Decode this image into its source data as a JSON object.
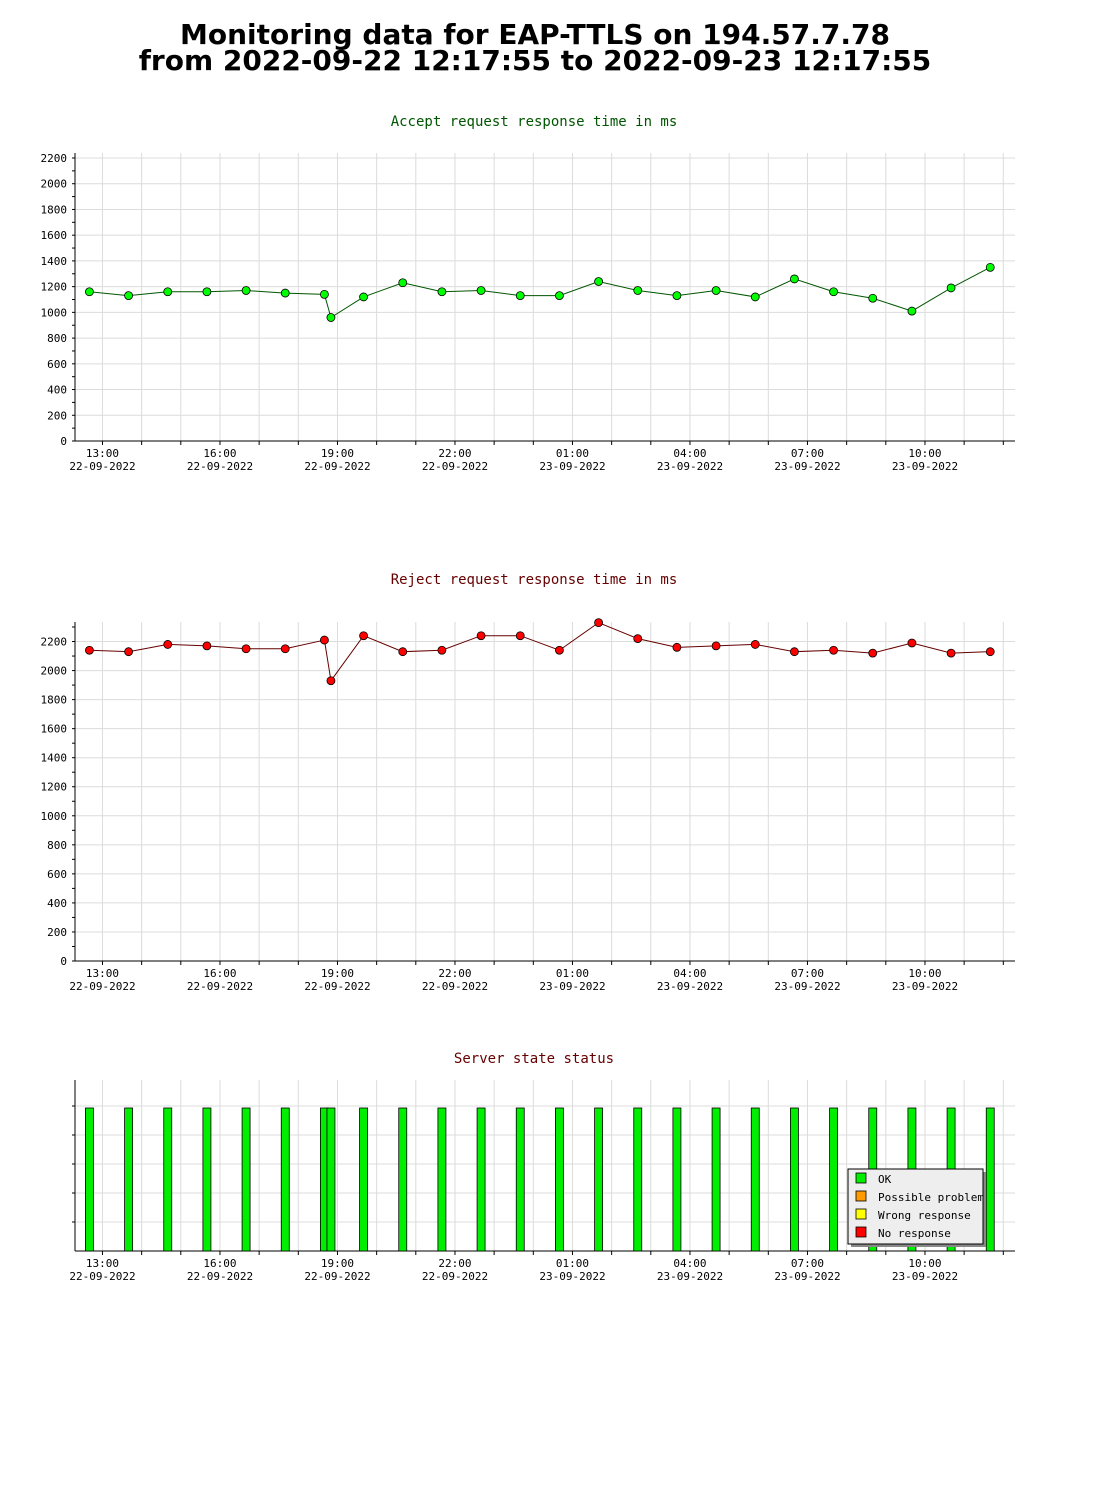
{
  "page": {
    "title_line1": "Monitoring data for EAP-TTLS on 194.57.7.78",
    "title_line2": "from 2022-09-22 12:17:55 to 2022-09-23 12:17:55"
  },
  "colors": {
    "accept_title": "#005500",
    "reject_title": "#660000",
    "status_title": "#660000",
    "accept_marker": "#00ff00",
    "accept_line": "#005500",
    "reject_marker": "#ff0000",
    "reject_line": "#660000",
    "ok": "#00ee00",
    "possible_problem": "#ff9900",
    "wrong_response": "#ffff00",
    "no_response": "#ff0000",
    "grid": "#dcdcdc"
  },
  "time_ticks": [
    {
      "time": "13:00",
      "date": "22-09-2022"
    },
    {
      "time": "16:00",
      "date": "22-09-2022"
    },
    {
      "time": "19:00",
      "date": "22-09-2022"
    },
    {
      "time": "22:00",
      "date": "22-09-2022"
    },
    {
      "time": "01:00",
      "date": "23-09-2022"
    },
    {
      "time": "04:00",
      "date": "23-09-2022"
    },
    {
      "time": "07:00",
      "date": "23-09-2022"
    },
    {
      "time": "10:00",
      "date": "23-09-2022"
    }
  ],
  "chart_data": [
    {
      "id": "accept",
      "type": "line",
      "title": "Accept request response time in ms",
      "ylim": [
        0,
        2200
      ],
      "yticks": [
        0,
        200,
        400,
        600,
        800,
        1000,
        1200,
        1400,
        1600,
        1800,
        2000,
        2200
      ],
      "grid": true,
      "x": [
        "2022-09-22 12:40",
        "2022-09-22 13:40",
        "2022-09-22 14:40",
        "2022-09-22 15:40",
        "2022-09-22 16:40",
        "2022-09-22 17:40",
        "2022-09-22 18:40",
        "2022-09-22 18:50",
        "2022-09-22 19:40",
        "2022-09-22 20:40",
        "2022-09-22 21:40",
        "2022-09-22 22:40",
        "2022-09-22 23:40",
        "2022-09-23 00:40",
        "2022-09-23 01:40",
        "2022-09-23 02:40",
        "2022-09-23 03:40",
        "2022-09-23 04:40",
        "2022-09-23 05:40",
        "2022-09-23 06:40",
        "2022-09-23 07:40",
        "2022-09-23 08:40",
        "2022-09-23 09:40",
        "2022-09-23 10:40",
        "2022-09-23 11:40"
      ],
      "values": [
        1160,
        1130,
        1160,
        1160,
        1170,
        1150,
        1140,
        960,
        1120,
        1230,
        1160,
        1170,
        1130,
        1130,
        1240,
        1170,
        1130,
        1170,
        1120,
        1260,
        1160,
        1110,
        1010,
        1190,
        1350
      ]
    },
    {
      "id": "reject",
      "type": "line",
      "title": "Reject request response time in ms",
      "ylim": [
        0,
        2300
      ],
      "yticks": [
        0,
        200,
        400,
        600,
        800,
        1000,
        1200,
        1400,
        1600,
        1800,
        2000,
        2200
      ],
      "grid": true,
      "x": [
        "2022-09-22 12:40",
        "2022-09-22 13:40",
        "2022-09-22 14:40",
        "2022-09-22 15:40",
        "2022-09-22 16:40",
        "2022-09-22 17:40",
        "2022-09-22 18:40",
        "2022-09-22 18:50",
        "2022-09-22 19:40",
        "2022-09-22 20:40",
        "2022-09-22 21:40",
        "2022-09-22 22:40",
        "2022-09-22 23:40",
        "2022-09-23 00:40",
        "2022-09-23 01:40",
        "2022-09-23 02:40",
        "2022-09-23 03:40",
        "2022-09-23 04:40",
        "2022-09-23 05:40",
        "2022-09-23 06:40",
        "2022-09-23 07:40",
        "2022-09-23 08:40",
        "2022-09-23 09:40",
        "2022-09-23 10:40",
        "2022-09-23 11:40"
      ],
      "values": [
        2140,
        2130,
        2180,
        2170,
        2150,
        2150,
        2210,
        1930,
        2240,
        2130,
        2140,
        2240,
        2240,
        2140,
        2330,
        2220,
        2160,
        2170,
        2180,
        2130,
        2140,
        2120,
        2190,
        2120,
        2130
      ]
    },
    {
      "id": "status",
      "type": "bar",
      "title": "Server state status",
      "grid": true,
      "x": [
        "2022-09-22 12:40",
        "2022-09-22 13:40",
        "2022-09-22 14:40",
        "2022-09-22 15:40",
        "2022-09-22 16:40",
        "2022-09-22 17:40",
        "2022-09-22 18:40",
        "2022-09-22 18:50",
        "2022-09-22 19:40",
        "2022-09-22 20:40",
        "2022-09-22 21:40",
        "2022-09-22 22:40",
        "2022-09-22 23:40",
        "2022-09-23 00:40",
        "2022-09-23 01:40",
        "2022-09-23 02:40",
        "2022-09-23 03:40",
        "2022-09-23 04:40",
        "2022-09-23 05:40",
        "2022-09-23 06:40",
        "2022-09-23 07:40",
        "2022-09-23 08:40",
        "2022-09-23 09:40",
        "2022-09-23 10:40",
        "2022-09-23 11:40"
      ],
      "states": [
        "OK",
        "OK",
        "OK",
        "OK",
        "OK",
        "OK",
        "OK",
        "OK",
        "OK",
        "OK",
        "OK",
        "OK",
        "OK",
        "OK",
        "OK",
        "OK",
        "OK",
        "OK",
        "OK",
        "OK",
        "OK",
        "OK",
        "OK",
        "OK",
        "OK"
      ],
      "legend_position": "bottom-right",
      "legend": [
        {
          "label": "OK",
          "color_key": "ok"
        },
        {
          "label": "Possible problem",
          "color_key": "possible_problem"
        },
        {
          "label": "Wrong response",
          "color_key": "wrong_response"
        },
        {
          "label": "No response",
          "color_key": "no_response"
        }
      ]
    }
  ]
}
